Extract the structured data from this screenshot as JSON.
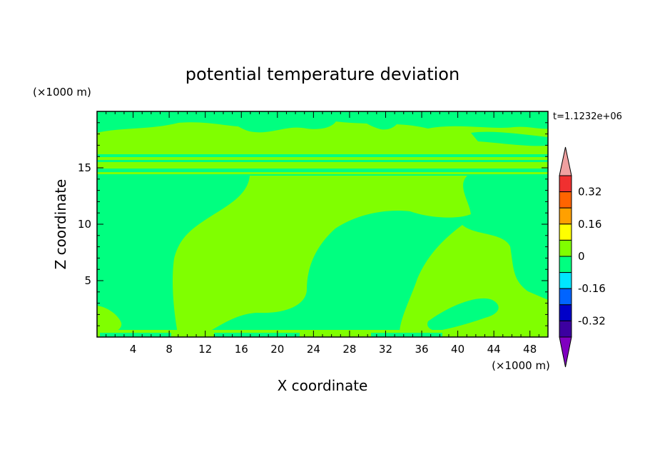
{
  "chart_data": {
    "type": "heatmap",
    "title": "potential temperature deviation",
    "xlabel": "X coordinate",
    "ylabel": "Z coordinate",
    "x_unit": "(×1000 m)",
    "y_unit": "(×1000 m)",
    "time_label": "t=1.1232e+06",
    "xlim": [
      0,
      50
    ],
    "ylim": [
      0,
      20
    ],
    "x_ticks": [
      4,
      8,
      12,
      16,
      20,
      24,
      28,
      32,
      36,
      40,
      44,
      48
    ],
    "y_ticks": [
      5,
      10,
      15
    ],
    "colorbar": {
      "labels": [
        "0.32",
        "0.16",
        "0",
        "-0.16",
        "-0.32"
      ],
      "bins": [
        {
          "lo": 0.32,
          "hi": 0.4,
          "color": "#f03030"
        },
        {
          "lo": 0.24,
          "hi": 0.32,
          "color": "#ff6400"
        },
        {
          "lo": 0.16,
          "hi": 0.24,
          "color": "#ffa000"
        },
        {
          "lo": 0.08,
          "hi": 0.16,
          "color": "#ffff00"
        },
        {
          "lo": 0.0,
          "hi": 0.08,
          "color": "#80ff00"
        },
        {
          "lo": -0.08,
          "hi": 0.0,
          "color": "#00ff80"
        },
        {
          "lo": -0.16,
          "hi": -0.08,
          "color": "#00e6ff"
        },
        {
          "lo": -0.24,
          "hi": -0.16,
          "color": "#0064ff"
        },
        {
          "lo": -0.32,
          "hi": -0.24,
          "color": "#0000c8"
        },
        {
          "lo": -0.4,
          "hi": -0.32,
          "color": "#3c00a0"
        }
      ],
      "over_color": "#f0a0a0",
      "under_color": "#8000c0"
    },
    "regions": {
      "background_value": -0.04,
      "background_color": "#00ff80",
      "positive_color": "#80ff00",
      "description_values": [
        "0",
        "-0.16..0"
      ]
    }
  }
}
